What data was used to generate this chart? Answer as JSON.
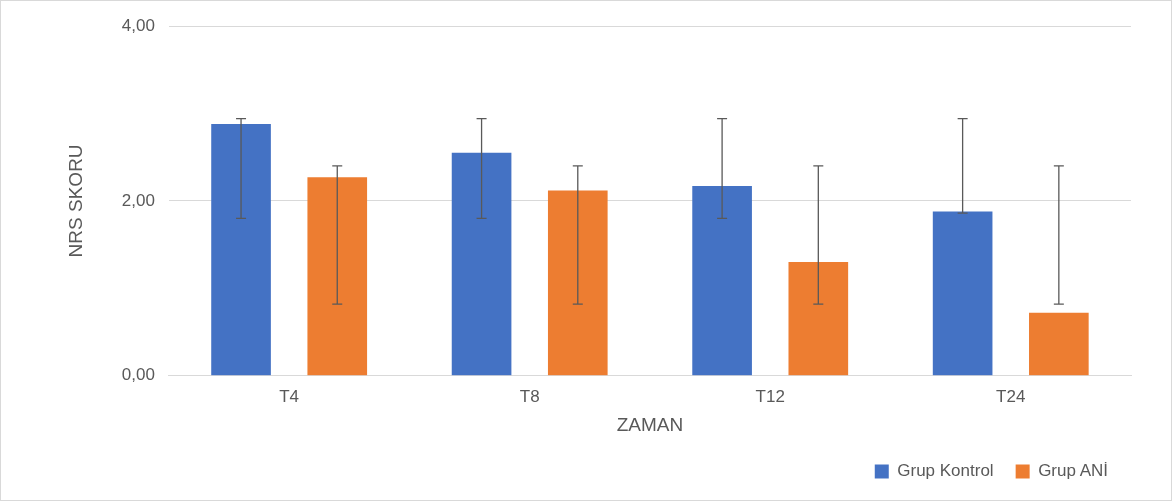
{
  "chart_data": {
    "type": "bar",
    "xlabel": "ZAMAN",
    "ylabel": "NRS SKORU",
    "categories": [
      "T4",
      "T8",
      "T12",
      "T24"
    ],
    "series": [
      {
        "name": "Grup Kontrol",
        "color": "#4472c4",
        "values": [
          2.88,
          2.55,
          2.17,
          1.88
        ],
        "errors": [
          [
            1.8,
            2.94
          ],
          [
            1.8,
            2.94
          ],
          [
            1.8,
            2.94
          ],
          [
            1.86,
            2.94
          ]
        ]
      },
      {
        "name": "Grup ANİ",
        "color": "#ed7d31",
        "values": [
          2.27,
          2.12,
          1.3,
          0.72
        ],
        "errors": [
          [
            0.82,
            2.4
          ],
          [
            0.82,
            2.4
          ],
          [
            0.82,
            2.4
          ],
          [
            0.82,
            2.4
          ]
        ]
      }
    ],
    "ylim": [
      0,
      4
    ],
    "yticks": [
      {
        "value": 0,
        "label": "0,00"
      },
      {
        "value": 2,
        "label": "2,00"
      },
      {
        "value": 4,
        "label": "4,00"
      }
    ],
    "grid": "y",
    "legend": "bottom right"
  }
}
